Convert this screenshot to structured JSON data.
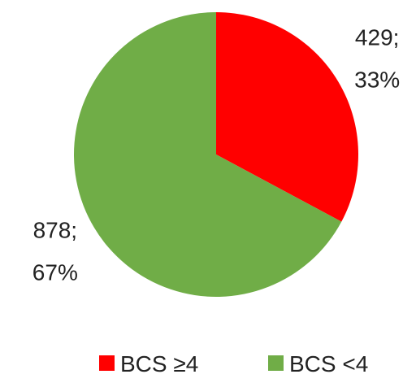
{
  "chart_data": {
    "type": "pie",
    "categories": [
      "BCS ≥4",
      "BCS <4"
    ],
    "values": [
      429,
      878
    ],
    "value_labels": [
      "429;\n33%",
      "878;\n67%"
    ],
    "colors": [
      "#ff0000",
      "#70ad47"
    ],
    "legend": "bottom"
  }
}
